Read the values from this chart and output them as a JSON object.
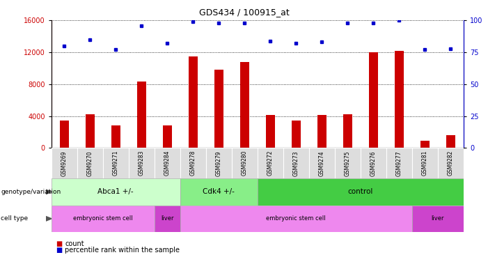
{
  "title": "GDS434 / 100915_at",
  "samples": [
    "GSM9269",
    "GSM9270",
    "GSM9271",
    "GSM9283",
    "GSM9284",
    "GSM9278",
    "GSM9279",
    "GSM9280",
    "GSM9272",
    "GSM9273",
    "GSM9274",
    "GSM9275",
    "GSM9276",
    "GSM9277",
    "GSM9281",
    "GSM9282"
  ],
  "counts": [
    3400,
    4200,
    2800,
    8300,
    2800,
    11500,
    9800,
    10800,
    4100,
    3400,
    4100,
    4200,
    12000,
    12200,
    900,
    1600
  ],
  "percentiles": [
    80,
    85,
    77,
    96,
    82,
    99,
    98,
    98,
    84,
    82,
    83,
    98,
    98,
    100,
    77,
    78
  ],
  "ylim_left": [
    0,
    16000
  ],
  "ylim_right": [
    0,
    100
  ],
  "yticks_left": [
    0,
    4000,
    8000,
    12000,
    16000
  ],
  "yticks_right": [
    0,
    25,
    50,
    75,
    100
  ],
  "bar_color": "#cc0000",
  "dot_color": "#0000cc",
  "genotype_groups": [
    {
      "label": "Abca1 +/-",
      "start": 0,
      "end": 5,
      "color": "#ccffcc"
    },
    {
      "label": "Cdk4 +/-",
      "start": 5,
      "end": 8,
      "color": "#88ee88"
    },
    {
      "label": "control",
      "start": 8,
      "end": 16,
      "color": "#44cc44"
    }
  ],
  "celltype_groups": [
    {
      "label": "embryonic stem cell",
      "start": 0,
      "end": 4,
      "color": "#ee88ee"
    },
    {
      "label": "liver",
      "start": 4,
      "end": 5,
      "color": "#cc44cc"
    },
    {
      "label": "embryonic stem cell",
      "start": 5,
      "end": 14,
      "color": "#ee88ee"
    },
    {
      "label": "liver",
      "start": 14,
      "end": 16,
      "color": "#cc44cc"
    }
  ],
  "genotype_label": "genotype/variation",
  "celltype_label": "cell type",
  "legend_count": "count",
  "legend_percentile": "percentile rank within the sample"
}
